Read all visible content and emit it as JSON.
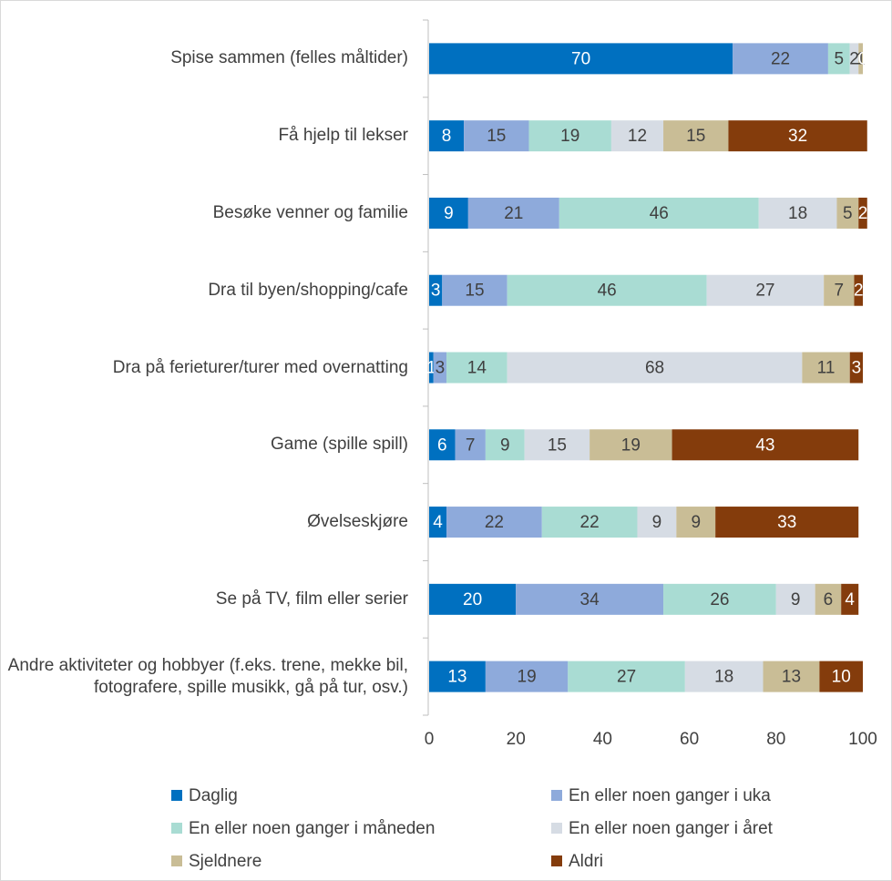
{
  "chart_data": {
    "type": "stacked-barh",
    "categories": [
      "Spise sammen (felles måltider)",
      "Få hjelp til lekser",
      "Besøke venner og familie",
      "Dra til byen/shopping/cafe",
      "Dra på ferieturer/turer med overnatting",
      "Game (spille spill)",
      "Øvelseskjøre",
      "Se på TV, film eller serier",
      "Andre aktiviteter og hobbyer (f.eks. trene, mekke bil, fotografere, spille musikk, gå på tur, osv.)"
    ],
    "series": [
      {
        "name": "Daglig",
        "color": "#0070c0",
        "values": [
          70,
          8,
          9,
          3,
          1,
          6,
          4,
          20,
          13
        ]
      },
      {
        "name": "En eller noen ganger i uka",
        "color": "#8eaadb",
        "values": [
          22,
          15,
          21,
          15,
          3,
          7,
          22,
          34,
          19
        ]
      },
      {
        "name": "En eller noen ganger i måneden",
        "color": "#a9dcd3",
        "values": [
          5,
          19,
          46,
          46,
          14,
          9,
          22,
          26,
          27
        ]
      },
      {
        "name": "En eller noen ganger i året",
        "color": "#d6dce4",
        "values": [
          2,
          12,
          18,
          27,
          68,
          15,
          9,
          9,
          18
        ]
      },
      {
        "name": "Sjeldnere",
        "color": "#c9bd96",
        "values": [
          1,
          15,
          5,
          7,
          11,
          19,
          9,
          6,
          13
        ]
      },
      {
        "name": "Aldri",
        "color": "#843c0c",
        "values": [
          0,
          32,
          2,
          2,
          3,
          43,
          33,
          4,
          10
        ]
      }
    ],
    "xlim": [
      0,
      100
    ],
    "xticks": [
      0,
      20,
      40,
      60,
      80,
      100
    ],
    "grid": false,
    "legend": "bottom"
  }
}
